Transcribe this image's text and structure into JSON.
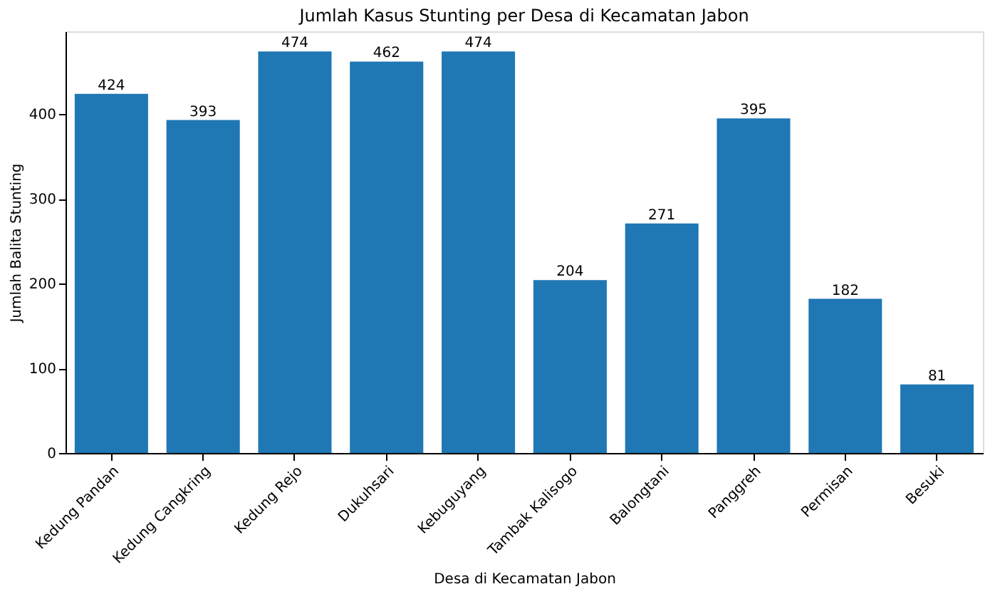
{
  "chart_data": {
    "type": "bar",
    "title": "Jumlah Kasus Stunting per Desa di Kecamatan Jabon",
    "xlabel": "Desa di Kecamatan Jabon",
    "ylabel": "Jumlah Balita Stunting",
    "categories": [
      "Kedung Pandan",
      "Kedung Cangkring",
      "Kedung Rejo",
      "Dukuhsari",
      "Kebuguyang",
      "Tambak Kalisogo",
      "Balongtani",
      "Panggreh",
      "Permisan",
      "Besuki"
    ],
    "values": [
      424,
      393,
      474,
      462,
      474,
      204,
      271,
      395,
      182,
      81
    ],
    "color": "#1f77b4",
    "ylim": [
      0,
      497.7
    ],
    "yticks": [
      0,
      100,
      200,
      300,
      400
    ],
    "data_labels": true,
    "grid": false
  }
}
